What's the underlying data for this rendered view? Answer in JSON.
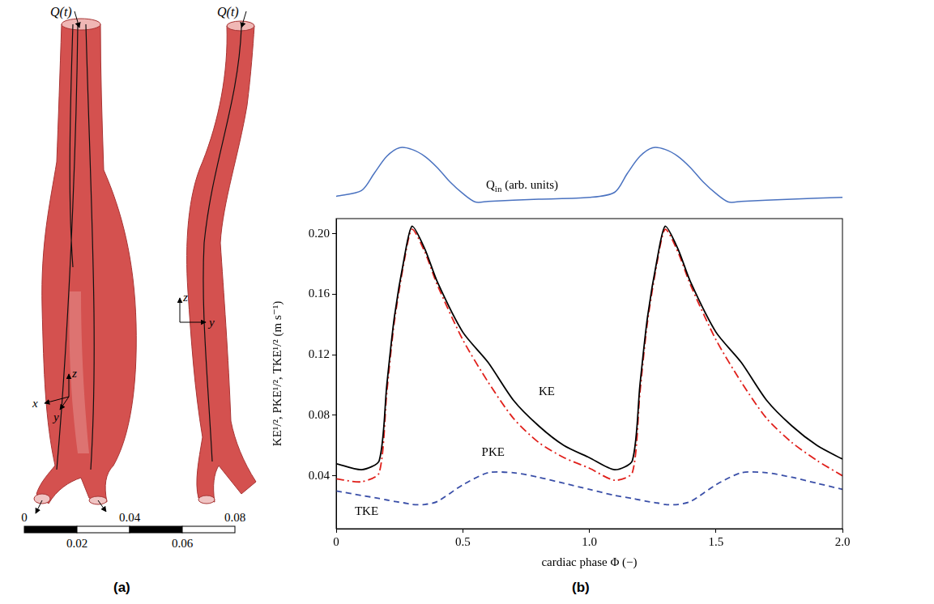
{
  "panel_a": {
    "label": "(a)",
    "inlet_label": "Q(t)",
    "left_view_axes": [
      "z",
      "x",
      "y"
    ],
    "right_view_axes": [
      "z",
      "y"
    ],
    "scale_bar": {
      "ticks": [
        0,
        0.02,
        0.04,
        0.06,
        0.08
      ]
    }
  },
  "panel_b": {
    "label": "(b)"
  },
  "chart_data": [
    {
      "type": "line",
      "label": {
        "text": "Q",
        "sub": "in",
        "suffix": " (arb. units)"
      },
      "color": "#4a72c0",
      "tick_labels": false,
      "xlim": [
        0,
        2
      ],
      "ylim": [
        0,
        1.05
      ],
      "x": [
        0,
        0.1,
        0.15,
        0.2,
        0.25,
        0.3,
        0.35,
        0.4,
        0.45,
        0.5,
        0.55,
        0.6,
        0.8,
        1.0,
        1.1,
        1.15,
        1.2,
        1.25,
        1.3,
        1.35,
        1.4,
        1.45,
        1.5,
        1.55,
        1.6,
        1.8,
        2.0
      ],
      "values": [
        0.15,
        0.25,
        0.55,
        0.85,
        1.0,
        0.97,
        0.85,
        0.65,
        0.4,
        0.2,
        0.05,
        0.06,
        0.1,
        0.13,
        0.22,
        0.55,
        0.85,
        1.0,
        0.97,
        0.85,
        0.65,
        0.4,
        0.2,
        0.05,
        0.06,
        0.1,
        0.13
      ]
    },
    {
      "type": "line",
      "xlabel": "cardiac phase Φ (−)",
      "ylabel": "KE¹/², PKE¹/², TKE¹/² (m s⁻¹)",
      "xlim": [
        0,
        2
      ],
      "ylim": [
        0.005,
        0.21
      ],
      "xticks": [
        0,
        0.5,
        {
          "value": 1,
          "label": "1.0"
        },
        1.5,
        {
          "value": 2,
          "label": "2.0"
        }
      ],
      "yticks": [
        0.04,
        0.08,
        0.12,
        0.16,
        {
          "value": 0.2,
          "label": "0.20"
        }
      ],
      "grid": false,
      "x": [
        0,
        0.1,
        0.17,
        0.2,
        0.23,
        0.27,
        0.3,
        0.35,
        0.4,
        0.5,
        0.6,
        0.7,
        0.8,
        0.9,
        1.0,
        1.1,
        1.17,
        1.2,
        1.23,
        1.27,
        1.3,
        1.35,
        1.4,
        1.5,
        1.6,
        1.7,
        1.8,
        1.9,
        2.0
      ],
      "series": [
        {
          "name": "KE",
          "color": "#000000",
          "line_style": "solid",
          "values": [
            0.048,
            0.044,
            0.05,
            0.1,
            0.145,
            0.185,
            0.205,
            0.19,
            0.168,
            0.135,
            0.115,
            0.09,
            0.073,
            0.06,
            0.052,
            0.044,
            0.05,
            0.1,
            0.145,
            0.185,
            0.205,
            0.19,
            0.168,
            0.135,
            0.115,
            0.09,
            0.073,
            0.06,
            0.051
          ]
        },
        {
          "name": "PKE",
          "color": "#e0201b",
          "line_style": "dashdot",
          "values": [
            0.038,
            0.036,
            0.042,
            0.095,
            0.142,
            0.183,
            0.203,
            0.188,
            0.166,
            0.13,
            0.102,
            0.078,
            0.062,
            0.052,
            0.045,
            0.037,
            0.042,
            0.095,
            0.142,
            0.183,
            0.203,
            0.188,
            0.166,
            0.13,
            0.102,
            0.078,
            0.062,
            0.05,
            0.04
          ]
        },
        {
          "name": "TKE",
          "color": "#3a4fa8",
          "line_style": "dashed",
          "values": [
            0.03,
            0.027,
            0.025,
            0.024,
            0.023,
            0.022,
            0.021,
            0.021,
            0.023,
            0.034,
            0.042,
            0.042,
            0.039,
            0.035,
            0.031,
            0.027,
            0.025,
            0.024,
            0.023,
            0.022,
            0.021,
            0.021,
            0.023,
            0.034,
            0.042,
            0.042,
            0.039,
            0.035,
            0.031
          ]
        }
      ]
    }
  ]
}
